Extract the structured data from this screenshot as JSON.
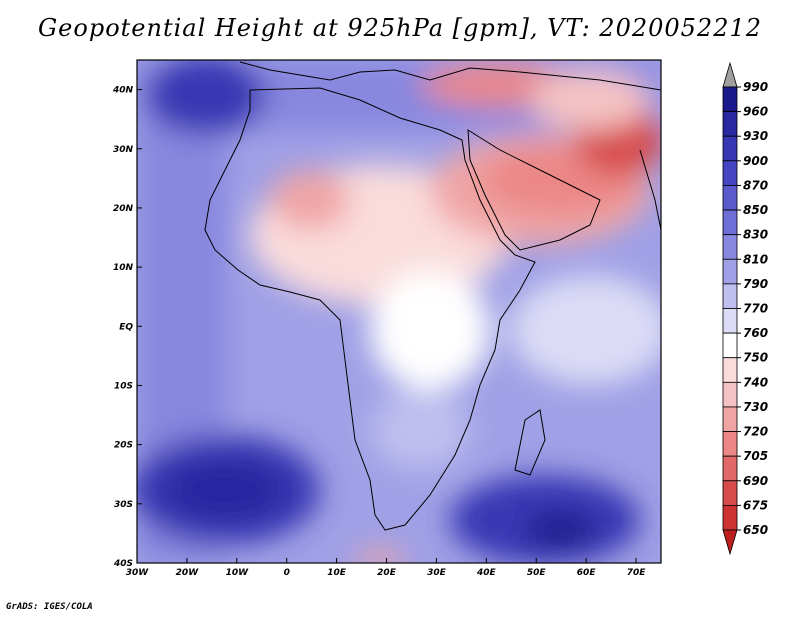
{
  "title": "Geopotential Height at 925hPa [gpm], VT: 2020052212",
  "credit": "GrADS: IGES/COLA",
  "map": {
    "variable": "Geopotential Height",
    "level": "925hPa",
    "units": "gpm",
    "valid_time": "2020052212",
    "lon_range": [
      -30,
      75
    ],
    "lat_range": [
      -40,
      45
    ],
    "lat_labels": [
      "40N",
      "30N",
      "20N",
      "10N",
      "EQ",
      "10S",
      "20S",
      "30S",
      "40S"
    ],
    "lat_values": [
      40,
      30,
      20,
      10,
      0,
      -10,
      -20,
      -30,
      -40
    ],
    "lon_labels": [
      "30W",
      "20W",
      "10W",
      "0",
      "10E",
      "20E",
      "30E",
      "40E",
      "50E",
      "60E",
      "70E"
    ],
    "lon_values": [
      -30,
      -20,
      -10,
      0,
      10,
      20,
      30,
      40,
      50,
      60,
      70
    ]
  },
  "colorbar": {
    "levels": [
      "990",
      "960",
      "930",
      "900",
      "870",
      "850",
      "830",
      "810",
      "790",
      "770",
      "760",
      "750",
      "740",
      "730",
      "720",
      "705",
      "690",
      "675",
      "650"
    ],
    "colors": [
      "#1a1a8c",
      "#2828a0",
      "#3737b4",
      "#4646c3",
      "#5a5acd",
      "#6e6ed7",
      "#8787df",
      "#a0a0e6",
      "#bebeef",
      "#dcdcf6",
      "#ffffff",
      "#fadcdc",
      "#f5c3c3",
      "#f0a5a5",
      "#eb8787",
      "#e16969",
      "#d74b4b",
      "#cd3232",
      "#be1e1e"
    ],
    "top_arrow_color": "#a0a0a0",
    "bottom_arrow_color": "#be1e1e"
  }
}
